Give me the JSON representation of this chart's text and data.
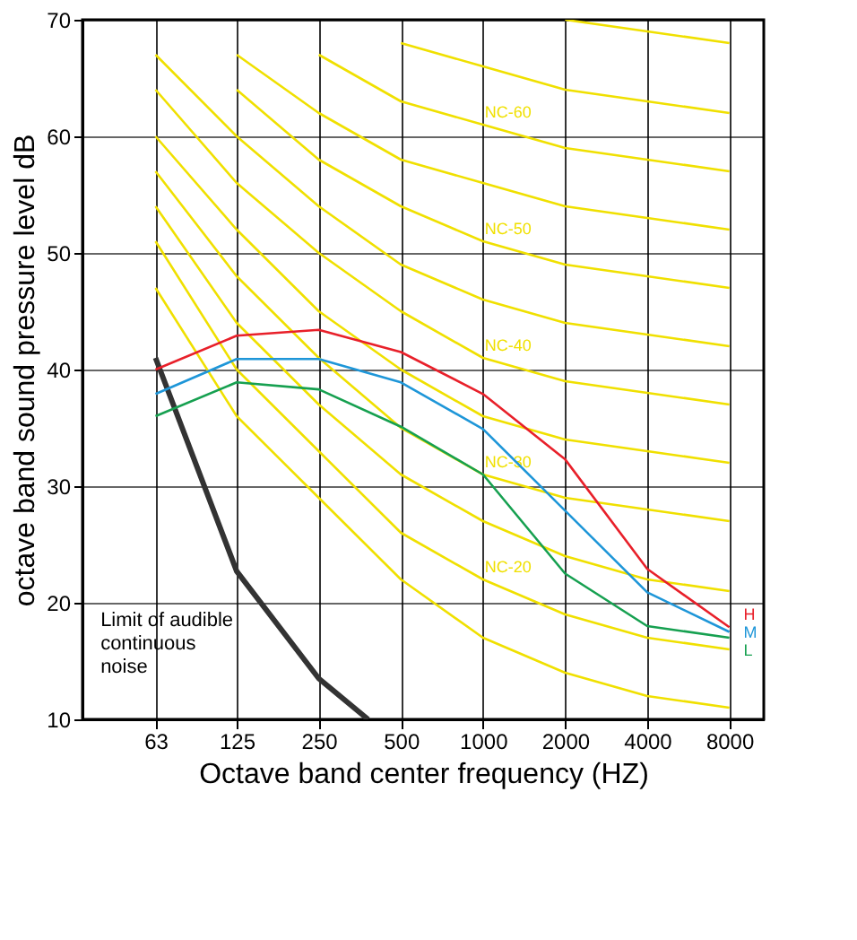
{
  "chart_data": {
    "type": "line",
    "xlabel": "Octave band center frequency (HZ)",
    "ylabel": "octave band sound pressure level dB",
    "log": "x",
    "xlim": [
      34,
      10700
    ],
    "xticks": [
      63,
      125,
      250,
      500,
      {
        "value": 1000,
        "label": "1000"
      },
      {
        "value": 2000,
        "label": "2000"
      },
      {
        "value": 4000,
        "label": "4000"
      },
      {
        "value": 8000,
        "label": "8000"
      }
    ],
    "ylim": [
      10,
      70
    ],
    "yticks": [
      10,
      20,
      30,
      40,
      50,
      60,
      70
    ],
    "grid": true,
    "marker": "none",
    "line_style": "solid",
    "x": [
      63,
      125,
      250,
      500,
      1000,
      2000,
      4000,
      8000
    ],
    "series": [
      {
        "color": "#f0e000",
        "values": [
          47,
          36,
          29,
          22,
          17,
          14,
          12,
          11
        ]
      },
      {
        "name": "NC-20",
        "color": "#f0e000",
        "values": [
          51,
          40,
          33,
          26,
          22,
          19,
          17,
          16
        ]
      },
      {
        "color": "#f0e000",
        "values": [
          54,
          44,
          37,
          31,
          27,
          24,
          22,
          21
        ]
      },
      {
        "name": "NC-30",
        "color": "#f0e000",
        "values": [
          57,
          48,
          41,
          35,
          31,
          29,
          28,
          27
        ]
      },
      {
        "color": "#f0e000",
        "values": [
          60,
          52,
          45,
          40,
          36,
          34,
          33,
          32
        ]
      },
      {
        "name": "NC-40",
        "color": "#f0e000",
        "values": [
          64,
          56,
          50,
          45,
          41,
          39,
          38,
          37
        ]
      },
      {
        "color": "#f0e000",
        "values": [
          67,
          60,
          54,
          49,
          46,
          44,
          43,
          42
        ]
      },
      {
        "name": "NC-50",
        "color": "#f0e000",
        "values": [
          null,
          64,
          58,
          54,
          51,
          49,
          48,
          47
        ]
      },
      {
        "color": "#f0e000",
        "values": [
          null,
          67,
          62,
          58,
          56,
          54,
          53,
          52
        ]
      },
      {
        "name": "NC-60",
        "color": "#f0e000",
        "values": [
          null,
          null,
          67,
          63,
          61,
          59,
          58,
          57
        ]
      },
      {
        "color": "#f0e000",
        "values": [
          null,
          null,
          null,
          68,
          66,
          64,
          63,
          62
        ]
      },
      {
        "color": "#f0e000",
        "values": [
          null,
          null,
          null,
          null,
          null,
          70,
          69,
          68
        ]
      },
      {
        "color": "#333333",
        "x": [
          63,
          125,
          250,
          379
        ],
        "values": [
          41,
          22.7,
          13.5,
          10
        ]
      },
      {
        "name": "H",
        "color": "#e8202a",
        "values": [
          40.0,
          42.9,
          43.4,
          41.5,
          37.9,
          32.3,
          22.9,
          17.9
        ]
      },
      {
        "name": "M",
        "color": "#1e96d8",
        "values": [
          37.9,
          40.9,
          40.9,
          38.9,
          34.9,
          27.9,
          20.9,
          17.5
        ]
      },
      {
        "name": "L",
        "color": "#16a050",
        "values": [
          36.0,
          38.9,
          38.3,
          35.1,
          31.0,
          22.5,
          18.0,
          17.0
        ]
      }
    ],
    "annotations": [
      {
        "text": "Limit of audible\ncontinuous\nnoise",
        "x": 150,
        "y": 20
      }
    ]
  }
}
